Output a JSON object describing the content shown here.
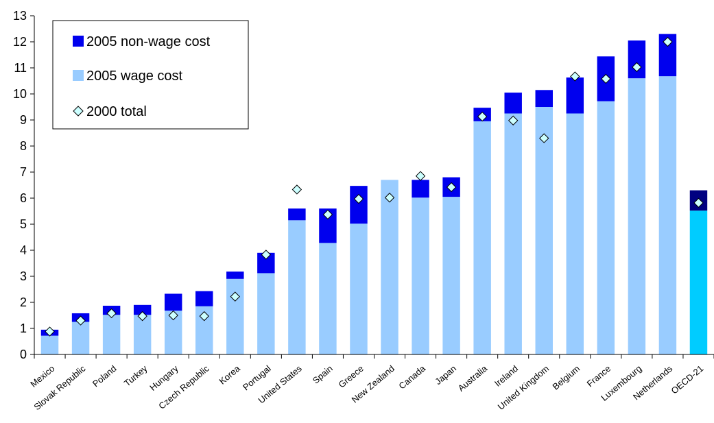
{
  "chart_data": {
    "type": "bar",
    "stacked": true,
    "title": "",
    "xlabel": "",
    "ylabel": "",
    "ylim": [
      0,
      13
    ],
    "y_ticks": [
      0,
      1,
      2,
      3,
      4,
      5,
      6,
      7,
      8,
      9,
      10,
      11,
      12,
      13
    ],
    "grid": false,
    "legend_position": "top-left",
    "categories": [
      "Mexico",
      "Slovak Republic",
      "Poland",
      "Turkey",
      "Hungary",
      "Czech Republic",
      "Korea",
      "Portugal",
      "United States",
      "Spain",
      "Greece",
      "New Zealand",
      "Canada",
      "Japan",
      "Australia",
      "Ireland",
      "United Kingdom",
      "Belgium",
      "France",
      "Luxembourg",
      "Netherlands",
      "OECD-21"
    ],
    "series": [
      {
        "name": "2005 wage cost",
        "type": "bar",
        "values": [
          0.72,
          1.25,
          1.52,
          1.52,
          1.68,
          1.85,
          2.9,
          3.12,
          5.15,
          4.28,
          5.02,
          6.7,
          6.02,
          6.05,
          8.95,
          9.25,
          9.5,
          9.25,
          9.72,
          10.6,
          10.68,
          5.52
        ]
      },
      {
        "name": "2005 non-wage cost",
        "type": "bar",
        "values": [
          0.23,
          0.33,
          0.35,
          0.38,
          0.65,
          0.58,
          0.28,
          0.78,
          0.45,
          1.32,
          1.45,
          0.0,
          0.68,
          0.75,
          0.52,
          0.8,
          0.65,
          1.38,
          1.72,
          1.45,
          1.62,
          0.78
        ]
      },
      {
        "name": "2000 total",
        "type": "scatter",
        "values": [
          0.88,
          1.3,
          1.58,
          1.47,
          1.5,
          1.47,
          2.22,
          3.83,
          6.33,
          5.37,
          5.97,
          6.02,
          6.85,
          6.42,
          9.13,
          8.98,
          8.3,
          10.67,
          10.58,
          11.03,
          12.0,
          5.82
        ]
      }
    ],
    "legend": [
      "2005 non-wage cost",
      "2005 wage cost",
      "2000 total"
    ],
    "colors": {
      "non_wage": "#0000ee",
      "wage": "#99ccff",
      "oecd_non_wage": "#000080",
      "oecd_wage": "#00ccff",
      "marker_fill": "#ccffff",
      "marker_stroke": "#000000"
    }
  }
}
